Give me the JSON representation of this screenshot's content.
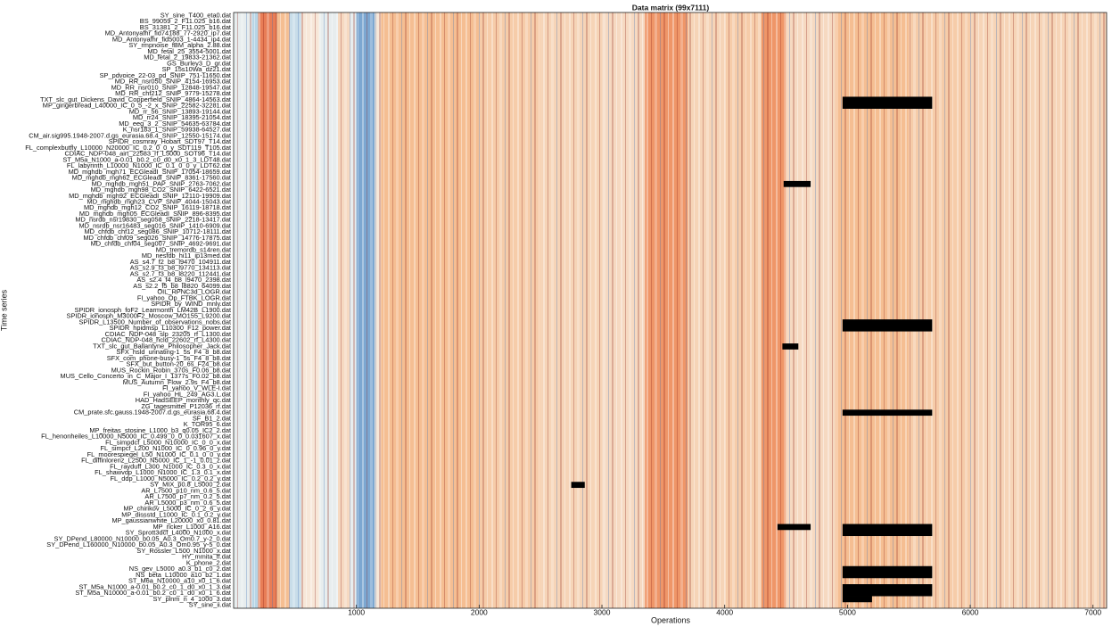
{
  "chart_data": {
    "type": "heatmap",
    "title": "Data matrix (99x7111)",
    "x_label": "Operations",
    "y_label": "Time series",
    "xlim": [
      0,
      7111
    ],
    "xticks": [
      1000,
      2000,
      3000,
      4000,
      5000,
      6000,
      7000
    ],
    "rows": [
      "SY_sine_T400_eta0.dat",
      "BS_99059_2_F11.025_b16.dat",
      "BS_31381_2_F11.025_b16.dat",
      "MD_Antonyafhr_fid74188_77-2920_ip7.dat",
      "MD_Antonyafhr_fid5003_1-4434_ip4.dat",
      "SY_rmpnoise_fBM_alpha_2.88.dat",
      "MD_fetal_25_3554-5001.dat",
      "MD_fetal_2_19833-21362.dat",
      "GS_Burley3_D_gr.dat",
      "SP_15s10Wa_dz21.dat",
      "SP_pdvoice_22-03_pd_SNIP_751-11650.dat",
      "MD_RR_nsr050_SNIP_4154-16953.dat",
      "MD_RR_nsr010_SNIP_12848-19547.dat",
      "MD_RR_chf212_SNIP_9779-15278.dat",
      "TXT_slc_gut_Dickens_David_Copperfield_SNIP_4864-14563.dat",
      "MP_gingerbread_L40000_IC_0_5_-2_x_SNIP_22582-32281.dat",
      "MD_rr_56_SNIP_13893-19144.dat",
      "MD_rr24_SNIP_18395-21054.dat",
      "MD_eeg_3_2_SNIP_54635-63784.dat",
      "K_nsr183_1_SNIP_59938-64527.dat",
      "CM_air.sig995.1948-2007.d.gs_eurasia.68.4_SNIP_12550-15174.dat",
      "SPIDR_cosmray_Hobart_SDT97_T14.dat",
      "FL_complexbutfly_L10000_N20000_IC_0.2_0_0_y_SDT119_T105.dat",
      "CDIAC_NDP-048_airt_22583_rf_L5000_SOT96_T14.dat",
      "ST_M5a_N1000_a-0.01_b0.2_c0_d0_x0_1_3_LDT48.dat",
      "FL_labyrinth_L10000_N1000_IC_0.1_0_0_y_LDT62.dat",
      "MD_mghdb_mgh71_ECGleadI_SNIP_17054-18659.dat",
      "MD_mghdb_mgh62_ECGleadI_SNIP_8361-17560.dat",
      "MD_mghdb_mgh51_PAP_SNIP_2763-7062.dat",
      "MD_mghdb_mgh98_CO2_SNIP_6422-6521.dat",
      "MD_mghdb_mgh92_ECGleadI_SNIP_12110-19909.dat",
      "MD_mghdb_mgh23_CVP_SNIP_4044-15043.dat",
      "MD_mghdb_mgh12_CO2_SNIP_16119-18718.dat",
      "MD_mghdb_mgh05_ECGleadI_SNIP_896-8395.dat",
      "MD_nsrdb_nsr19830_seg058_SNIP_2218-13417.dat",
      "MD_nsrdb_nsr16483_seg016_SNIP_1410-6909.dat",
      "MD_chfdb_chf12_seg086_SNIP_10712-18111.dat",
      "MD_chfdb_chf09_seg026_SNIP_14776-17875.dat",
      "MD_chfdb_chf04_seg007_SNIP_4692-9691.dat",
      "MD_tremordb_s14ren.dat",
      "MD_nesfdb_hi11_ip13med.dat",
      "AS_s4.7_f2_b8_l9470_104911.dat",
      "AS_s2.9_f3_b8_l9770_134113.dat",
      "AS_s2.7_f3_b8_l8220_112441.dat",
      "AS_s2.4_f4_b8_l9470_2398.dat",
      "AS_s2.2_f5_b8_l8820_64099.dat",
      "OIL_RPNC3d_LOGR.dat",
      "FI_yahoo_Op_FTBK_LOGR.dat",
      "SPIDR_by_WIND_mnly.dat",
      "SPIDR_ionosph_foF2_Learmonth_LM42B_L1900.dat",
      "SPIDR_ionosph_M3000F2_Moscow_MO155_L9200.dat",
      "SPIDR_L13500_Number_of_observations_nobs.dat",
      "SPIDR_hpidmsp_L10300_F12_power.dat",
      "CDIAC_NDP-048_slp_23205_rf_L1300.dat",
      "CDIAC_NDP-048_hcld_22602_rf_L4300.dat",
      "TXT_slc_gut_Ballantyne_Philosopher_Jack.dat",
      "SFX_hsld_urinating-1_5s_F4_8_b8.dat",
      "SFX_com_phone-busy-1_5s_F4_8_b8.dat",
      "SFX_but_button-20_6s_F24_b8.dat",
      "MUS_Rockin_Robin_370s_F0.06_b8.dat",
      "MUS_Cello_Concerto_in_C_Major_I_1377s_F0.02_b8.dat",
      "MUS_Autumn_Flow_2.9s_F4_b8.dat",
      "FI_yahoo_V_WLE-I.dat",
      "FI_yahoo_HL_249_AG3.L.dat",
      "HAD_HadSEEP_monthly_qc.dat",
      "ZG_tagesmittel_P12036_rf.dat",
      "CM_prate.sfc.gauss.1948-2007.d.gs_eurasia.68.4.dat",
      "SF_B1_2.dat",
      "K_TOR95_6.dat",
      "MP_freitas_stosine_L1000_b3_q0.05_IC2_2.dat",
      "FL_henonheiles_L10000_N5000_IC_0.499_0_0_0.031607_x.dat",
      "FL_simpdcf_L5000_N10000_IC_0_0_x.dat",
      "FL_simpcf_L200_N1000_IC_0_0.96_0_y.dat",
      "FL_moorespiegel_L50_N1000_IC_0.1_0_0_y.dat",
      "FL_diffinlorenz_L2500_N5000_IC_1_-1_0.01_z.dat",
      "FL_rayduff_L300_N1000_IC_0.3_0_x.dat",
      "FL_shawvdp_L1000_N1000_IC_1.3_0.1_x.dat",
      "FL_ddp_L1000_N5000_IC_0.2_0.2_y.dat",
      "SY_MIX_p0.8_L5000_2.dat",
      "AR_L7500_p10_nm_0.6_5.dat",
      "AR_L7500_p7_nm_0.2_5.dat",
      "AR_L5000_p3_nm_0.6_5.dat",
      "MP_chirikov_L5000_IC_0_2_6_y.dat",
      "MP_dissstd_L1000_IC_0.1_0.2_y.dat",
      "MP_gaussianwhite_L20000_x0_0.81.dat",
      "MP_ricker_L1000_A16.dat",
      "SY_Sprott3dcf_L4000_N1000_x.dat",
      "SY_DPend_L80000_N10000_b0.05_A0.3_Om0.7_y-2_0.dat",
      "SY_DPend_L160000_N10000_b0.05_A0.3_Om0.95_y-5_0.dat",
      "SY_Rossler_L500_N1000_x.dat",
      "HY_mmita_ff.dat",
      "K_phone_2.dat",
      "NS_gev_L5000_a0.3_b1_c0_2.dat",
      "NS_beta_L10000_a10_b2_1.dat",
      "ST_M6a_N10000_a10_x0_1_6.dat",
      "ST_M5a_N1000_a-0.01_b0.2_c0_1_d0_x0_1_3.dat",
      "ST_M5a_N10000_a-0.01_b0.2_c0_1_d0_x0_1_6.dat",
      "SY_plnm_n_4_1000_3.dat",
      "SY_sine_ii.dat"
    ],
    "band_edges": [
      0,
      150,
      200,
      350,
      450,
      550,
      700,
      850,
      950,
      1000,
      1150,
      1200,
      1500,
      2000,
      2500,
      3000,
      3350,
      3700,
      4000,
      4300,
      4500,
      4900,
      5500,
      6000,
      7111
    ],
    "band_values": [
      0.45,
      0.3,
      0.85,
      0.7,
      0.35,
      0.55,
      0.45,
      0.6,
      0.45,
      0.15,
      0.55,
      0.7,
      0.7,
      0.65,
      0.62,
      0.6,
      0.8,
      0.62,
      0.65,
      0.8,
      0.6,
      0.7,
      0.65,
      0.62
    ],
    "colormap": [
      "#3a6db5",
      "#a8cde4",
      "#f7f5f0",
      "#f5b07a",
      "#d5301f"
    ],
    "missing_color": "#000000",
    "missing": [
      {
        "rows": [
          14,
          15
        ],
        "x": [
          4960,
          5690
        ]
      },
      {
        "rows": [
          28,
          28
        ],
        "x": [
          4480,
          4700
        ]
      },
      {
        "rows": [
          51,
          52
        ],
        "x": [
          4960,
          5690
        ]
      },
      {
        "rows": [
          55,
          55
        ],
        "x": [
          4470,
          4600
        ]
      },
      {
        "rows": [
          66,
          66
        ],
        "x": [
          4960,
          5690
        ]
      },
      {
        "rows": [
          78,
          78
        ],
        "x": [
          2750,
          2860
        ]
      },
      {
        "rows": [
          85,
          86
        ],
        "x": [
          4960,
          5690
        ]
      },
      {
        "rows": [
          85,
          85
        ],
        "x": [
          4430,
          4700
        ]
      },
      {
        "rows": [
          92,
          93
        ],
        "x": [
          4960,
          5690
        ]
      },
      {
        "rows": [
          95,
          96
        ],
        "x": [
          4960,
          5690
        ]
      },
      {
        "rows": [
          97,
          97
        ],
        "x": [
          4960,
          5200
        ]
      }
    ]
  }
}
